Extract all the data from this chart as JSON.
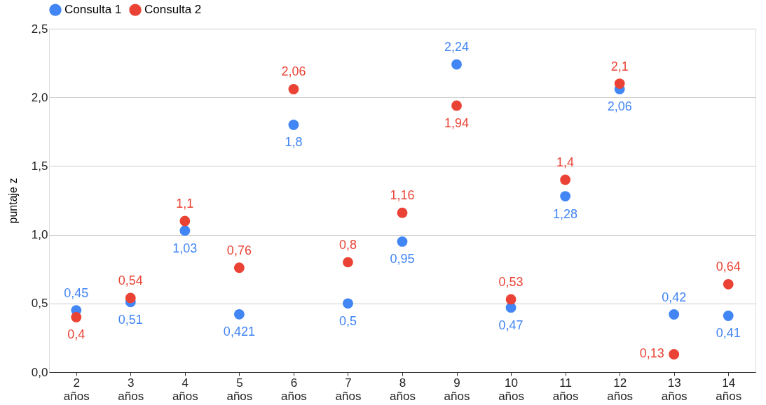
{
  "chart_data": {
    "type": "scatter",
    "ylabel": "puntaje z",
    "categories": [
      "2 años",
      "3 años",
      "4 años",
      "5 años",
      "6 años",
      "7 años",
      "8 años",
      "9 años",
      "10 años",
      "11 años",
      "12 años",
      "13 años",
      "14 años"
    ],
    "series": [
      {
        "name": "Consulta 1",
        "color": "#4285f4",
        "values": [
          0.45,
          0.51,
          1.03,
          0.421,
          1.8,
          0.5,
          0.95,
          2.24,
          0.47,
          1.28,
          2.06,
          0.42,
          0.41
        ],
        "value_labels": [
          "0,45",
          "0,51",
          "1,03",
          "0,421",
          "1,8",
          "0,5",
          "0,95",
          "2,24",
          "0,47",
          "1,28",
          "2,06",
          "0,42",
          "0,41"
        ]
      },
      {
        "name": "Consulta 2",
        "color": "#ea4335",
        "values": [
          0.4,
          0.54,
          1.1,
          0.76,
          2.06,
          0.8,
          1.16,
          1.94,
          0.53,
          1.4,
          2.1,
          0.13,
          0.64
        ],
        "value_labels": [
          "0,4",
          "0,54",
          "1,1",
          "0,76",
          "2,06",
          "0,8",
          "1,16",
          "1,94",
          "0,53",
          "1,4",
          "2,1",
          "0,13",
          "0,64"
        ]
      }
    ],
    "ylim": [
      0,
      2.5
    ],
    "yticks": [
      {
        "value": 0,
        "label": "0,0"
      },
      {
        "value": 0.5,
        "label": "0,5"
      },
      {
        "value": 1,
        "label": "1,0"
      },
      {
        "value": 1.5,
        "label": "1,5"
      },
      {
        "value": 2,
        "label": "2,0"
      },
      {
        "value": 2.5,
        "label": "2,5"
      }
    ],
    "grid": "y",
    "legend": "top",
    "marker": "circle"
  }
}
